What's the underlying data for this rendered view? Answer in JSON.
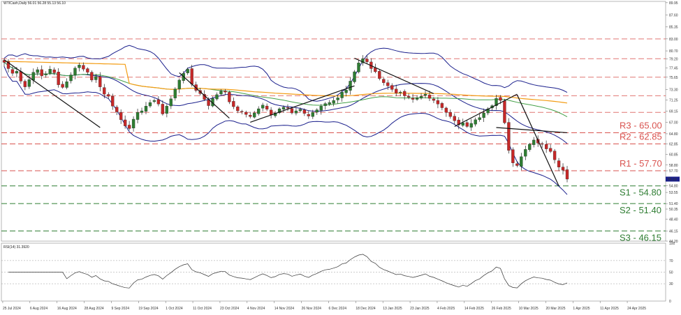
{
  "header": {
    "symbol_line": "WTICash,Daily  56.01 56.28 55.13 56.10",
    "rsi_line": "RSI(14) 31.3920"
  },
  "colors": {
    "resistance": "#d9534f",
    "support": "#2e7d32",
    "candle_up": "#2e7d32",
    "candle_down": "#c62828",
    "bollinger": "#1a1f8c",
    "ma_fast": "#43a047",
    "ma_slow": "#f39c12",
    "trendline": "#111111",
    "rsi": "#333333"
  },
  "chart_data": {
    "type": "candlestick",
    "instrument": "WTICash",
    "timeframe": "Daily",
    "ylim": [
      44.2,
      90.2
    ],
    "price_ticks": [
      "89.95",
      "87.60",
      "85.35",
      "83.00",
      "80.70",
      "79.20",
      "77.45",
      "75.65",
      "73.30",
      "71.25",
      "69.15",
      "67.00",
      "64.80",
      "62.85",
      "60.85",
      "58.80",
      "57.70",
      "56.10",
      "54.80",
      "53.55",
      "51.40",
      "50.35",
      "48.40",
      "46.15",
      "44.20"
    ],
    "date_labels": [
      "25 Jul 2024",
      "6 Aug 2024",
      "16 Aug 2024",
      "28 Aug 2024",
      "9 Sep 2024",
      "19 Sep 2024",
      "1 Oct 2024",
      "11 Oct 2024",
      "23 Oct 2024",
      "4 Nov 2024",
      "14 Nov 2024",
      "26 Nov 2024",
      "6 Dec 2024",
      "18 Dec 2024",
      "13 Jan 2025",
      "23 Jan 2025",
      "4 Feb 2025",
      "14 Feb 2025",
      "26 Feb 2025",
      "10 Mar 2025",
      "20 Mar 2025",
      "1 Apr 2025",
      "11 Apr 2025",
      "24 Apr 2025"
    ],
    "last_price": 56.1,
    "resistance_levels": [
      {
        "label": "R3 - 65.00",
        "value": 65.0
      },
      {
        "label": "R2 - 62.85",
        "value": 62.85
      },
      {
        "label": "R1 - 57.70",
        "value": 57.7
      }
    ],
    "support_levels": [
      {
        "label": "S1 - 54.80",
        "value": 54.8
      },
      {
        "label": "S2 - 51.40",
        "value": 51.4
      },
      {
        "label": "S3 - 46.15",
        "value": 46.15
      }
    ],
    "extra_dashed_levels": [
      83.0,
      79.2,
      75.65,
      72.1,
      68.9
    ],
    "close_series": [
      78.5,
      77.3,
      76.4,
      76.8,
      74.9,
      73.8,
      75.2,
      76.6,
      77.1,
      75.9,
      76.3,
      77.2,
      76.5,
      74.2,
      73.7,
      74.8,
      76.1,
      77.4,
      78.0,
      77.2,
      76.6,
      75.1,
      75.8,
      73.8,
      72.4,
      72.0,
      70.1,
      69.0,
      67.5,
      66.3,
      65.8,
      67.6,
      68.9,
      69.2,
      70.1,
      70.8,
      71.2,
      70.5,
      68.6,
      70.1,
      71.5,
      73.4,
      75.1,
      76.4,
      77.2,
      74.3,
      73.1,
      72.5,
      71.4,
      70.2,
      71.6,
      72.3,
      73.0,
      72.8,
      70.9,
      70.0,
      69.2,
      69.0,
      68.5,
      68.1,
      68.8,
      69.6,
      70.3,
      69.5,
      68.4,
      68.8,
      69.6,
      69.9,
      69.7,
      68.8,
      69.2,
      69.5,
      68.7,
      68.2,
      68.9,
      69.4,
      70.1,
      70.6,
      70.8,
      71.2,
      71.7,
      72.8,
      73.2,
      74.9,
      76.7,
      78.4,
      79.2,
      78.6,
      77.3,
      76.7,
      75.4,
      74.6,
      74.0,
      73.3,
      72.6,
      72.8,
      72.1,
      71.8,
      71.4,
      71.7,
      72.0,
      72.4,
      71.6,
      71.2,
      70.5,
      69.8,
      68.9,
      68.1,
      67.3,
      66.5,
      66.9,
      66.2,
      66.8,
      67.5,
      67.9,
      68.8,
      69.6,
      70.2,
      71.6,
      71.2,
      66.9,
      61.6,
      59.2,
      58.7,
      60.4,
      61.8,
      62.8,
      63.6,
      63.0,
      62.8,
      61.9,
      61.4,
      59.8,
      58.4,
      57.8,
      56.1
    ],
    "rsi": {
      "period": 14,
      "value": 31.392,
      "ylim": [
        0,
        100
      ],
      "levels": [
        30,
        50,
        70
      ],
      "ticks": [
        "100",
        "70",
        "50",
        "30",
        "0"
      ]
    }
  }
}
